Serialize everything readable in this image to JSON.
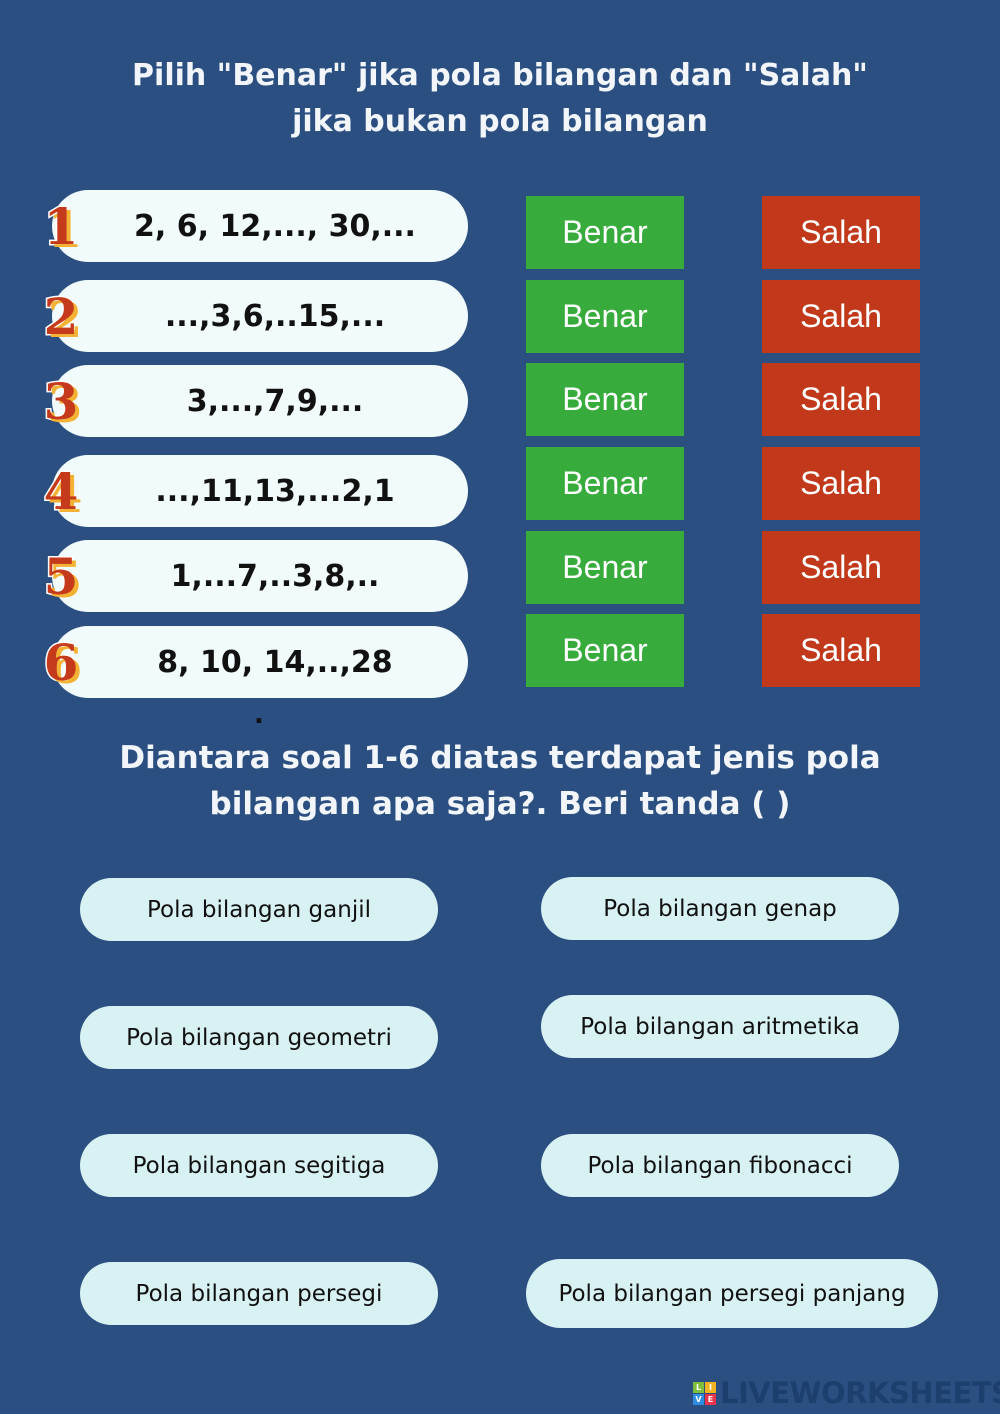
{
  "title": {
    "line1": "Pilih \"Benar\" jika pola bilangan dan \"Salah\"",
    "line2": "jika bukan pola bilangan"
  },
  "rows": [
    {
      "number": "1",
      "sequence": "2, 6, 12,..., 30,...",
      "true_label": "Benar",
      "false_label": "Salah"
    },
    {
      "number": "2",
      "sequence": "...,3,6,..15,...",
      "true_label": "Benar",
      "false_label": "Salah"
    },
    {
      "number": "3",
      "sequence": "3,...,7,9,...",
      "true_label": "Benar",
      "false_label": "Salah"
    },
    {
      "number": "4",
      "sequence": "...,11,13,...2,1",
      "true_label": "Benar",
      "false_label": "Salah"
    },
    {
      "number": "5",
      "sequence": "1,...7,..3,8,..",
      "true_label": "Benar",
      "false_label": "Salah"
    },
    {
      "number": "6",
      "sequence": "8, 10, 14,..,28",
      "true_label": "Benar",
      "false_label": "Salah"
    }
  ],
  "dot": ".",
  "question": {
    "line1": "Diantara soal 1-6 diatas terdapat jenis pola",
    "line2": "bilangan apa saja?. Beri tanda (   )"
  },
  "options": [
    "Pola bilangan ganjil",
    "Pola bilangan genap",
    "Pola bilangan geometri",
    "Pola bilangan aritmetika",
    "Pola bilangan segitiga",
    "Pola bilangan fibonacci",
    "Pola bilangan persegi",
    "Pola bilangan persegi panjang"
  ],
  "logo": {
    "text": "LIVEWORKSHEETS",
    "letters": [
      "L",
      "I",
      "V",
      "E"
    ]
  },
  "colors": {
    "background": "#2b4f81",
    "benar": "#37ab3c",
    "salah": "#c1391a"
  }
}
